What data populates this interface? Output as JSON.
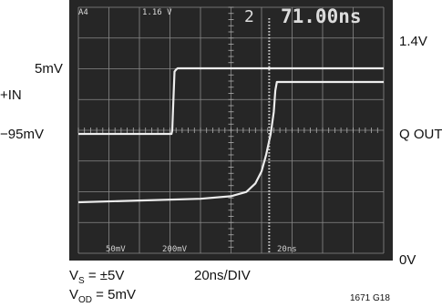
{
  "chart_data": {
    "type": "line",
    "title": "",
    "scope_readout": {
      "top_left": "A4",
      "top_mid": "1.16 V",
      "channel": "2",
      "time": "71.00ns",
      "ch1_scale": "50mV",
      "ch2_scale": "200mV",
      "timebase": "20ns"
    },
    "left_labels": {
      "level_high": "5mV",
      "signal": "+IN",
      "level_low": "−95mV"
    },
    "right_labels": {
      "level_high": "1.4V",
      "signal": "Q OUT",
      "level_low": "0V"
    },
    "xlabel": "20ns/DIV",
    "x_divisions": 10,
    "y_divisions": 8,
    "series": [
      {
        "name": "+IN",
        "unit": "mV",
        "x_ns": [
          0,
          61,
          61.5,
          62,
          63,
          64,
          65,
          70,
          80,
          100,
          200
        ],
        "values": [
          -95,
          -95,
          -90,
          -60,
          0,
          3,
          5,
          5,
          5,
          5,
          5
        ]
      },
      {
        "name": "Q OUT",
        "unit": "V",
        "x_ns": [
          0,
          40,
          80,
          100,
          110,
          116,
          120,
          123,
          126,
          128,
          129,
          130,
          200
        ],
        "values": [
          0,
          0.02,
          0.04,
          0.07,
          0.12,
          0.22,
          0.36,
          0.55,
          0.8,
          1.05,
          1.3,
          1.4,
          1.4
        ]
      }
    ],
    "cursor_x_ns": 125
  },
  "conditions": {
    "vs_main": "V",
    "vs_sub": "S",
    "vs_rest": " = ±5V",
    "vod_main": "V",
    "vod_sub": "OD",
    "vod_rest": " = 5mV"
  },
  "figure_code": "1671 G18"
}
